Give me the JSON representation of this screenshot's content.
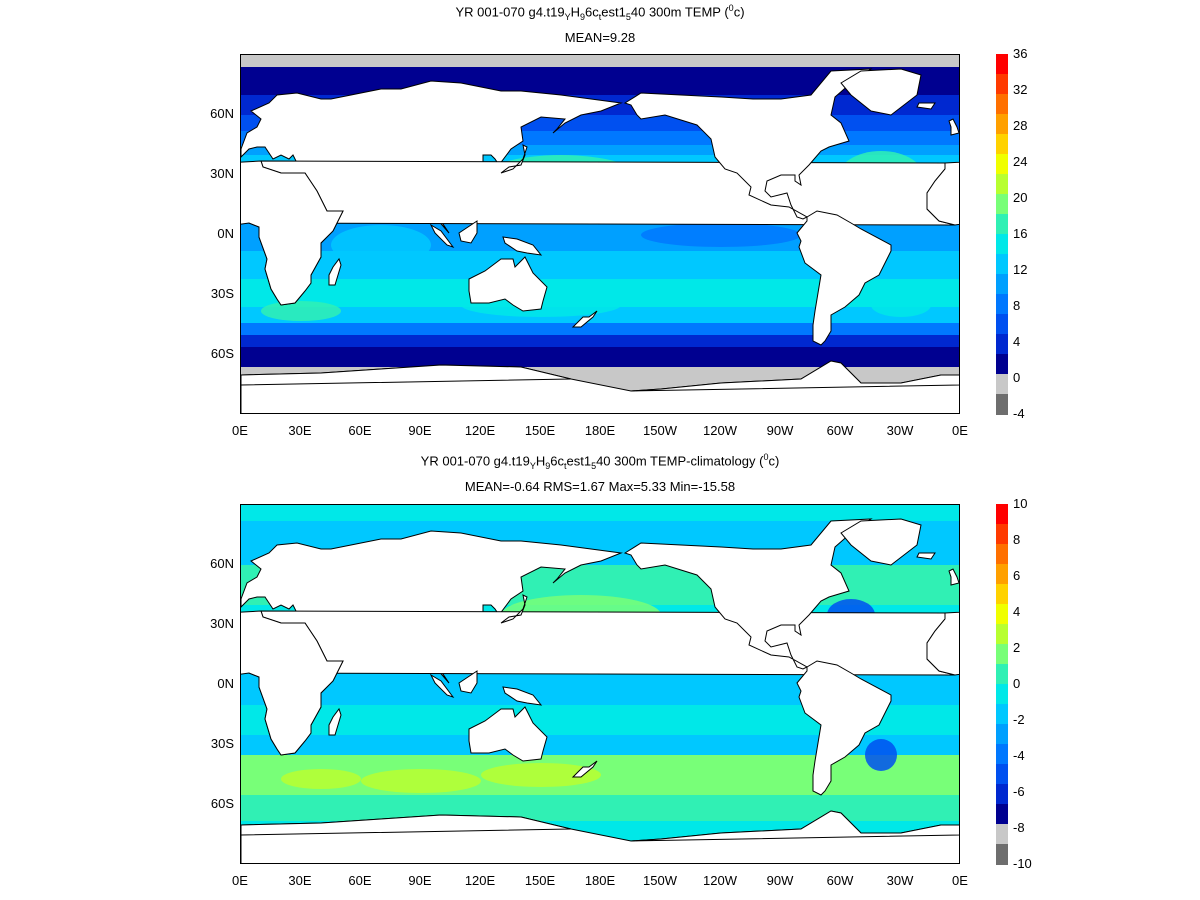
{
  "colors": {
    "land": "#ffffff",
    "coast": "#000000",
    "ice": "#c8c8c8"
  },
  "chart_data": [
    {
      "type": "heatmap",
      "title_parts": [
        "YR 001-070 g4.t19",
        "Y",
        "H",
        "9",
        "6c",
        "t",
        "est1",
        "5",
        "40 300m TEMP (",
        "0",
        "c)"
      ],
      "stats": "MEAN=9.28",
      "xticks": [
        "0E",
        "30E",
        "60E",
        "90E",
        "120E",
        "150E",
        "180E",
        "150W",
        "120W",
        "90W",
        "60W",
        "30W",
        "0E"
      ],
      "yticks": [
        "60N",
        "30N",
        "0N",
        "30S",
        "60S"
      ],
      "ylim": [
        -90,
        90
      ],
      "colorbar": {
        "labels": [
          "36",
          "32",
          "28",
          "24",
          "20",
          "16",
          "12",
          "8",
          "4",
          "0",
          "-4"
        ],
        "colors": [
          "#ff0000",
          "#ff3a00",
          "#ff7000",
          "#ffa000",
          "#ffd200",
          "#f0ff00",
          "#b8ff30",
          "#78ff78",
          "#30f0b4",
          "#00e8e8",
          "#00c8ff",
          "#00a0ff",
          "#0078ff",
          "#0050f0",
          "#0028d0",
          "#000090",
          "#c8c8c8",
          "#6e6e6e"
        ]
      }
    },
    {
      "type": "heatmap",
      "title_parts": [
        "YR 001-070 g4.t19",
        "Y",
        "H",
        "9",
        "6c",
        "t",
        "est1",
        "5",
        "40 300m TEMP-climatology (",
        "0",
        "c)"
      ],
      "stats": "MEAN=-0.64   RMS=1.67   Max=5.33   Min=-15.58",
      "xticks": [
        "0E",
        "30E",
        "60E",
        "90E",
        "120E",
        "150E",
        "180E",
        "150W",
        "120W",
        "90W",
        "60W",
        "30W",
        "0E"
      ],
      "yticks": [
        "60N",
        "30N",
        "0N",
        "30S",
        "60S"
      ],
      "ylim": [
        -90,
        90
      ],
      "colorbar": {
        "labels": [
          "10",
          "8",
          "6",
          "4",
          "2",
          "0",
          "-2",
          "-4",
          "-6",
          "-8",
          "-10"
        ],
        "colors": [
          "#ff0000",
          "#ff3a00",
          "#ff7000",
          "#ffa000",
          "#ffd200",
          "#f0ff00",
          "#b8ff30",
          "#78ff78",
          "#30f0b4",
          "#00e8e8",
          "#00c8ff",
          "#00a0ff",
          "#0078ff",
          "#0050f0",
          "#0028d0",
          "#000090",
          "#c8c8c8",
          "#6e6e6e"
        ]
      }
    }
  ]
}
